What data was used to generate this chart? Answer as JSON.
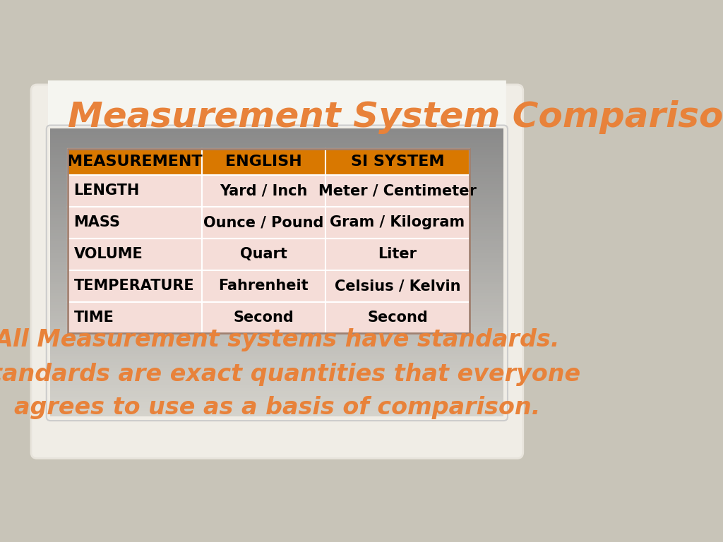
{
  "title": "Measurement System Comparisons",
  "title_color": "#E8823A",
  "title_fontsize": 36,
  "bg_outer": "#C8C4B8",
  "card_gray_bg_top": "#D8D5CE",
  "card_gray_bg_bottom": "#9A9A9A",
  "card_white_bg": "#F5F5F5",
  "table_header_bg": "#D97800",
  "table_header_text": "#000000",
  "table_row_bg": "#F5DDD8",
  "table_border_color": "#C0A090",
  "headers": [
    "MEASUREMENT",
    "ENGLISH",
    "SI SYSTEM"
  ],
  "rows": [
    [
      "LENGTH",
      "Yard / Inch",
      "Meter / Centimeter"
    ],
    [
      "MASS",
      "Ounce / Pound",
      "Gram / Kilogram"
    ],
    [
      "VOLUME",
      "Quart",
      "Liter"
    ],
    [
      "TEMPERATURE",
      "Fahrenheit",
      "Celsius / Kelvin"
    ],
    [
      "TIME",
      "Second",
      "Second"
    ]
  ],
  "footer_lines": [
    "All Measurement systems have standards.",
    "Standards are exact quantities that everyone",
    "agrees to use as a basis of comparison."
  ],
  "footer_color": "#E8823A",
  "footer_fontsize": 24,
  "header_fontsize": 16,
  "cell_fontsize": 15
}
